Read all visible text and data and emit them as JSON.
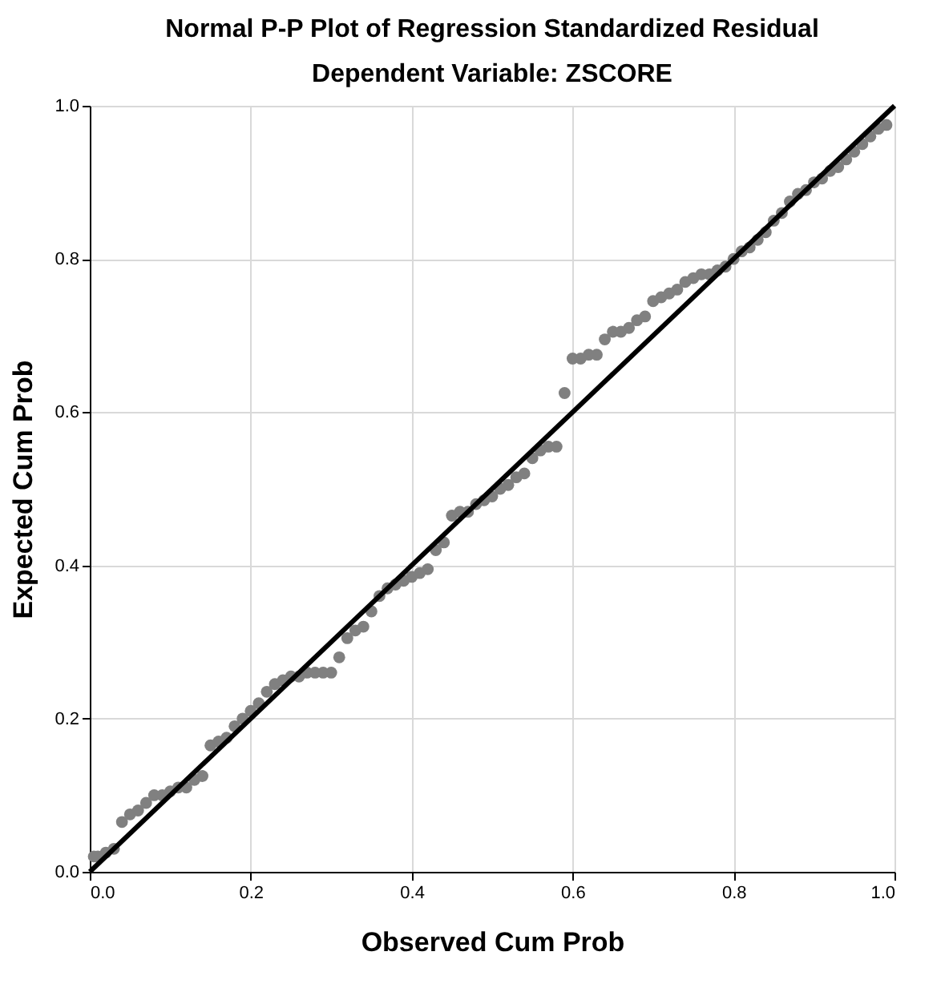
{
  "chart_data": {
    "type": "scatter",
    "title": "Normal P-P Plot of Regression Standardized Residual",
    "subtitle": "Dependent Variable: ZSCORE",
    "xlabel": "Observed Cum Prob",
    "ylabel": "Expected Cum Prob",
    "xlim": [
      0,
      1
    ],
    "ylim": [
      0,
      1
    ],
    "xticks": [
      {
        "value": 0,
        "label": "0.0"
      },
      0.2,
      0.4,
      0.6,
      0.8,
      {
        "value": 1,
        "label": "1.0"
      }
    ],
    "yticks": [
      {
        "value": 0,
        "label": "0.0"
      },
      0.2,
      0.4,
      0.6,
      0.8,
      {
        "value": 1,
        "label": "1.0"
      }
    ],
    "grid": true,
    "series": [
      {
        "marker": "circle",
        "color": "#808080",
        "x": [
          0.005,
          0.01,
          0.02,
          0.03,
          0.04,
          0.05,
          0.06,
          0.07,
          0.08,
          0.09,
          0.1,
          0.11,
          0.12,
          0.13,
          0.14,
          0.15,
          0.16,
          0.17,
          0.18,
          0.19,
          0.2,
          0.21,
          0.22,
          0.23,
          0.24,
          0.25,
          0.26,
          0.27,
          0.28,
          0.29,
          0.3,
          0.31,
          0.32,
          0.33,
          0.34,
          0.35,
          0.36,
          0.37,
          0.38,
          0.39,
          0.4,
          0.41,
          0.42,
          0.43,
          0.44,
          0.45,
          0.46,
          0.47,
          0.48,
          0.49,
          0.5,
          0.51,
          0.52,
          0.53,
          0.54,
          0.55,
          0.56,
          0.57,
          0.58,
          0.59,
          0.6,
          0.61,
          0.62,
          0.63,
          0.64,
          0.65,
          0.66,
          0.67,
          0.68,
          0.69,
          0.7,
          0.71,
          0.72,
          0.73,
          0.74,
          0.75,
          0.76,
          0.77,
          0.78,
          0.79,
          0.8,
          0.81,
          0.82,
          0.83,
          0.84,
          0.85,
          0.86,
          0.87,
          0.88,
          0.89,
          0.9,
          0.91,
          0.92,
          0.93,
          0.94,
          0.95,
          0.96,
          0.97,
          0.98,
          0.99
        ],
        "values": [
          0.02,
          0.02,
          0.025,
          0.03,
          0.065,
          0.075,
          0.08,
          0.09,
          0.1,
          0.1,
          0.105,
          0.11,
          0.11,
          0.12,
          0.125,
          0.165,
          0.17,
          0.175,
          0.19,
          0.2,
          0.21,
          0.22,
          0.235,
          0.245,
          0.25,
          0.255,
          0.255,
          0.26,
          0.26,
          0.26,
          0.26,
          0.28,
          0.305,
          0.315,
          0.32,
          0.34,
          0.36,
          0.37,
          0.375,
          0.38,
          0.385,
          0.39,
          0.395,
          0.42,
          0.43,
          0.465,
          0.47,
          0.47,
          0.48,
          0.485,
          0.49,
          0.5,
          0.505,
          0.515,
          0.52,
          0.54,
          0.55,
          0.555,
          0.555,
          0.625,
          0.67,
          0.67,
          0.675,
          0.675,
          0.695,
          0.705,
          0.705,
          0.71,
          0.72,
          0.725,
          0.745,
          0.75,
          0.755,
          0.76,
          0.77,
          0.775,
          0.78,
          0.78,
          0.785,
          0.79,
          0.8,
          0.81,
          0.815,
          0.825,
          0.835,
          0.85,
          0.86,
          0.875,
          0.885,
          0.89,
          0.9,
          0.905,
          0.915,
          0.92,
          0.93,
          0.94,
          0.95,
          0.96,
          0.97,
          0.975
        ]
      },
      {
        "type": "line",
        "color": "#000000",
        "x": [
          0,
          1
        ],
        "values": [
          0,
          1
        ]
      }
    ]
  }
}
